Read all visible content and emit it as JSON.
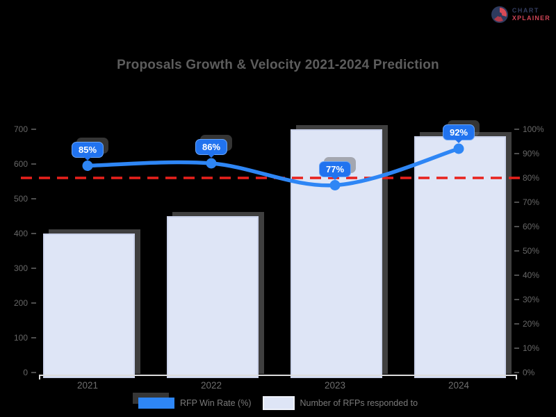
{
  "logo": {
    "icon": "pie-logo-icon",
    "line1": "CHART",
    "line2": "XPLAINER",
    "colors": {
      "circle": "#2e3a5e",
      "accent": "#d94a56"
    }
  },
  "chart_data": {
    "type": "bar+line",
    "title": "Proposals Growth & Velocity 2021-2024 Prediction",
    "categories": [
      "2021",
      "2022",
      "2023",
      "2024"
    ],
    "series": [
      {
        "name": "RFP Win Rate (%)",
        "type": "line",
        "axis": "right",
        "values": [
          85,
          86,
          77,
          92
        ],
        "point_labels": [
          "85%",
          "86%",
          "77%",
          "92%"
        ],
        "color": "#2e86f5"
      },
      {
        "name": "Number of RFPs responded to",
        "type": "bar",
        "axis": "left",
        "values": [
          400,
          450,
          700,
          680
        ],
        "color": "#dee5f6"
      }
    ],
    "target_line": {
      "value": 80,
      "axis": "right",
      "color": "#e8211c",
      "style": "dashed"
    },
    "left_axis": {
      "min": 0,
      "max": 700,
      "step": 100,
      "ticks": [
        "700",
        "600",
        "500",
        "400",
        "300",
        "200",
        "100",
        "0"
      ]
    },
    "right_axis": {
      "min": 0,
      "max": 100,
      "step": 10,
      "ticks": [
        "100%",
        "90%",
        "80%",
        "70%",
        "60%",
        "50%",
        "40%",
        "30%",
        "20%",
        "10%",
        "0%"
      ]
    },
    "legend": [
      {
        "label": "RFP Win Rate (%)",
        "swatch": "#2e86f5"
      },
      {
        "label": "Number of RFPs responded to",
        "swatch": "#dee5f6"
      }
    ],
    "layout": {
      "grid": false,
      "legend_position": "bottom",
      "background": "#000000"
    }
  }
}
